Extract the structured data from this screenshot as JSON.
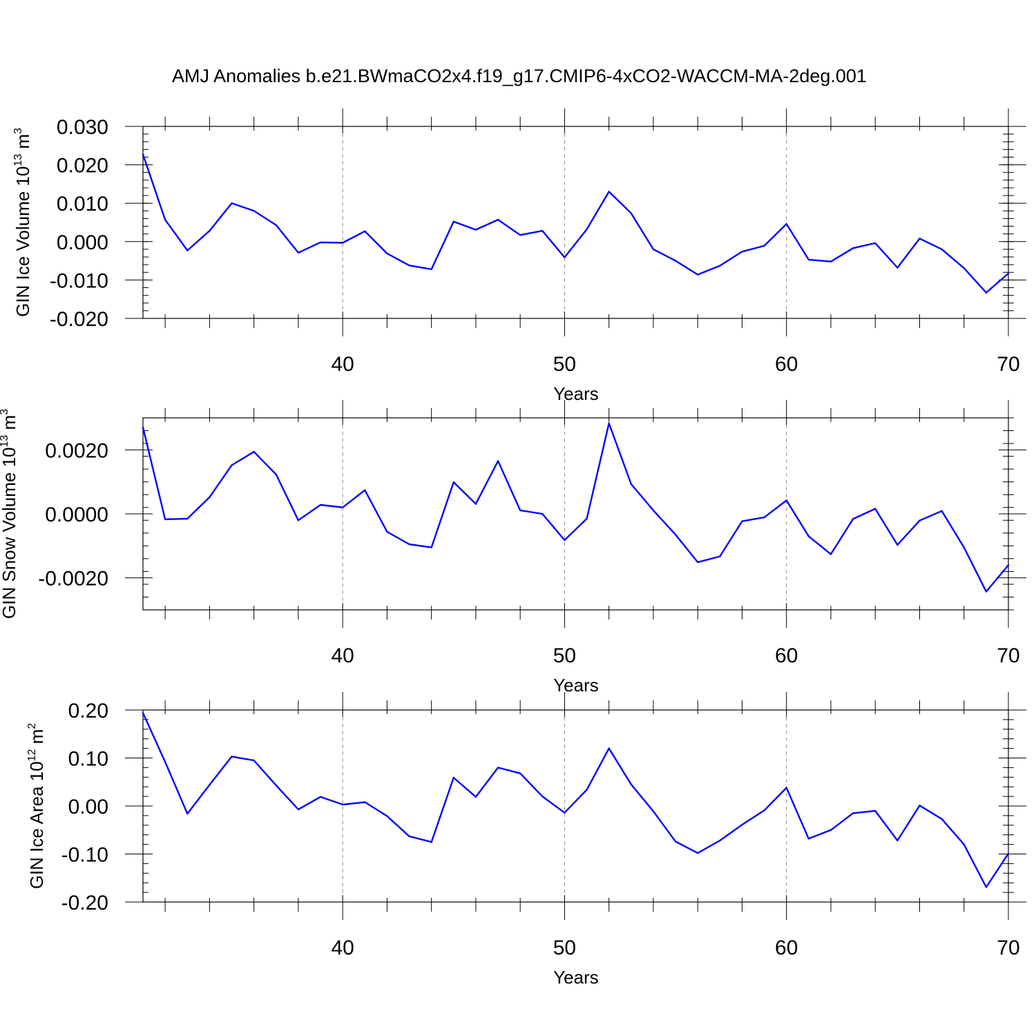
{
  "title": "AMJ Anomalies b.e21.BWmaCO2x4.f19_g17.CMIP6-4xCO2-WACCM-MA-2deg.001",
  "colors": {
    "line": "#0000ff",
    "axis": "#000000",
    "grid": "#888888"
  },
  "chart_data": [
    {
      "type": "line",
      "xlabel": "Years",
      "ylabel": {
        "prefix": "GIN Ice Volume 10",
        "exponent": "13",
        "middle": " m",
        "unit_exponent": "3"
      },
      "xlim": [
        31,
        70
      ],
      "ylim": [
        -0.02,
        0.03
      ],
      "xticks": [
        40,
        50,
        60,
        70
      ],
      "xtick_labels": [
        "40",
        "50",
        "60",
        "70"
      ],
      "yticks": [
        -0.02,
        -0.01,
        0.0,
        0.01,
        0.02,
        0.03
      ],
      "ytick_labels": [
        "-0.020",
        "-0.010",
        "0.000",
        "0.010",
        "0.020",
        "0.030"
      ],
      "grid_x": [
        40,
        50,
        60
      ],
      "x": [
        31,
        32,
        33,
        34,
        35,
        36,
        37,
        38,
        39,
        40,
        41,
        42,
        43,
        44,
        45,
        46,
        47,
        48,
        49,
        50,
        51,
        52,
        53,
        54,
        55,
        56,
        57,
        58,
        59,
        60,
        61,
        62,
        63,
        64,
        65,
        66,
        67,
        68,
        69,
        70
      ],
      "values": [
        0.0227,
        0.0057,
        -0.0023,
        0.0028,
        0.01,
        0.008,
        0.0043,
        -0.0029,
        -0.0002,
        -0.0003,
        0.0027,
        -0.0031,
        -0.0062,
        -0.0072,
        0.0052,
        0.0031,
        0.0057,
        0.0017,
        0.0028,
        -0.0041,
        0.0032,
        0.013,
        0.0074,
        -0.002,
        -0.005,
        -0.0086,
        -0.0063,
        -0.0026,
        -0.0011,
        0.0046,
        -0.0047,
        -0.0052,
        -0.0017,
        -0.0004,
        -0.0068,
        0.0008,
        -0.002,
        -0.0069,
        -0.0133,
        -0.0083
      ]
    },
    {
      "type": "line",
      "xlabel": "Years",
      "ylabel": {
        "prefix": "GIN Snow Volume 10",
        "exponent": "13",
        "middle": " m",
        "unit_exponent": "3"
      },
      "xlim": [
        31,
        70
      ],
      "ylim": [
        -0.003,
        0.003
      ],
      "xticks": [
        40,
        50,
        60,
        70
      ],
      "xtick_labels": [
        "40",
        "50",
        "60",
        "70"
      ],
      "yticks": [
        -0.002,
        0.0,
        0.002
      ],
      "ytick_labels": [
        "-0.0020",
        "0.0000",
        "0.0020"
      ],
      "grid_x": [
        40,
        50,
        60
      ],
      "x": [
        31,
        32,
        33,
        34,
        35,
        36,
        37,
        38,
        39,
        40,
        41,
        42,
        43,
        44,
        45,
        46,
        47,
        48,
        49,
        50,
        51,
        52,
        53,
        54,
        55,
        56,
        57,
        58,
        59,
        60,
        61,
        62,
        63,
        64,
        65,
        66,
        67,
        68,
        69,
        70
      ],
      "values": [
        0.0027,
        -0.00017,
        -0.00015,
        0.00052,
        0.00152,
        0.00194,
        0.00123,
        -0.0002,
        0.00028,
        0.0002,
        0.00074,
        -0.00056,
        -0.00095,
        -0.00105,
        0.00099,
        0.00031,
        0.00165,
        0.00011,
        0.0,
        -0.00082,
        -0.00015,
        0.00283,
        0.00093,
        0.00011,
        -0.00065,
        -0.00151,
        -0.00133,
        -0.00023,
        -0.00011,
        0.00042,
        -0.0007,
        -0.00126,
        -0.00016,
        0.00016,
        -0.00097,
        -0.00021,
        9e-05,
        -0.00105,
        -0.00243,
        -0.0016
      ]
    },
    {
      "type": "line",
      "xlabel": "Years",
      "ylabel": {
        "prefix": "GIN Ice Area 10",
        "exponent": "12",
        "middle": " m",
        "unit_exponent": "2"
      },
      "xlim": [
        31,
        70
      ],
      "ylim": [
        -0.2,
        0.2
      ],
      "xticks": [
        40,
        50,
        60,
        70
      ],
      "xtick_labels": [
        "40",
        "50",
        "60",
        "70"
      ],
      "yticks": [
        -0.2,
        -0.1,
        0.0,
        0.1,
        0.2
      ],
      "ytick_labels": [
        "-0.20",
        "-0.10",
        "0.00",
        "0.10",
        "0.20"
      ],
      "grid_x": [
        40,
        50,
        60
      ],
      "x": [
        31,
        32,
        33,
        34,
        35,
        36,
        37,
        38,
        39,
        40,
        41,
        42,
        43,
        44,
        45,
        46,
        47,
        48,
        49,
        50,
        51,
        52,
        53,
        54,
        55,
        56,
        57,
        58,
        59,
        60,
        61,
        62,
        63,
        64,
        65,
        66,
        67,
        68,
        69,
        70
      ],
      "values": [
        0.194,
        0.092,
        -0.016,
        0.044,
        0.103,
        0.095,
        0.043,
        -0.007,
        0.019,
        0.003,
        0.008,
        -0.021,
        -0.063,
        -0.075,
        0.059,
        0.019,
        0.08,
        0.068,
        0.02,
        -0.014,
        0.034,
        0.12,
        0.045,
        -0.011,
        -0.074,
        -0.098,
        -0.072,
        -0.039,
        -0.009,
        0.038,
        -0.068,
        -0.05,
        -0.015,
        -0.01,
        -0.072,
        0.001,
        -0.027,
        -0.08,
        -0.169,
        -0.099
      ]
    }
  ]
}
